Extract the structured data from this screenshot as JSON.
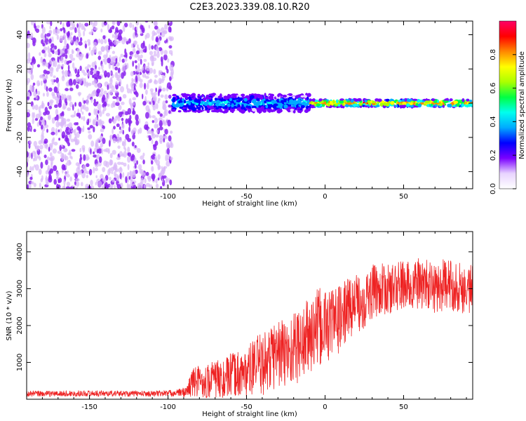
{
  "title": "C2E3.2023.339.08.10.R20",
  "colors": {
    "snr_line": "#ee2222",
    "scatter_noise": "#8a22ee",
    "scatter_light": "#d8b8f8"
  },
  "chart_data": [
    {
      "type": "heatmap",
      "name": "spectrogram",
      "xlabel": "Height of straight line (km)",
      "ylabel": "Frequency (Hz)",
      "xlim": [
        -190,
        94
      ],
      "ylim": [
        -50,
        48
      ],
      "xticks": [
        -150,
        -100,
        -50,
        0,
        50
      ],
      "xtick_labels": [
        "-150",
        "-100",
        "-50",
        "0",
        "50"
      ],
      "yticks": [
        -40,
        -20,
        0,
        20,
        40
      ],
      "ytick_labels": [
        "-40",
        "-20",
        "0",
        "20",
        "40"
      ],
      "colorbar": {
        "label": "Normalized spectral amplitude",
        "range": [
          0,
          1
        ],
        "ticks": [
          0.0,
          0.2,
          0.4,
          0.6,
          0.8
        ],
        "tick_labels": [
          "0.0",
          "0.2",
          "0.4",
          "0.6",
          "0.8"
        ],
        "colormap": [
          "#ffffff",
          "#e8d4ff",
          "#7a00ff",
          "#0000ff",
          "#00aaff",
          "#00ffee",
          "#00ff44",
          "#aaff00",
          "#ffff00",
          "#ff8800",
          "#ff0000",
          "#ff0066"
        ]
      },
      "regions": [
        {
          "description": "noise",
          "x_range": [
            -190,
            -97
          ],
          "freq_range": [
            -50,
            48
          ],
          "amplitude": 0.15
        },
        {
          "description": "signal band",
          "x_range": [
            -97,
            -10
          ],
          "freq_center": 0,
          "freq_halfwidth": 5,
          "amplitude": 0.4
        },
        {
          "description": "signal band",
          "x_range": [
            -10,
            94
          ],
          "freq_center": 0,
          "freq_halfwidth": 2,
          "amplitude": 0.85
        }
      ]
    },
    {
      "type": "line",
      "name": "snr",
      "xlabel": "Height of straight line (km)",
      "ylabel": "SNR (10 * v/v)",
      "xlim": [
        -190,
        94
      ],
      "ylim": [
        0,
        4550
      ],
      "xticks": [
        -150,
        -100,
        -50,
        0,
        50
      ],
      "xtick_labels": [
        "-150",
        "-100",
        "-50",
        "0",
        "50"
      ],
      "yticks": [
        1000,
        2000,
        3000,
        4000
      ],
      "ytick_labels": [
        "1000",
        "2000",
        "3000",
        "4000"
      ],
      "series": [
        {
          "name": "SNR",
          "x": [
            -190,
            -170,
            -150,
            -130,
            -110,
            -95,
            -88,
            -85,
            -80,
            -75,
            -70,
            -65,
            -60,
            -55,
            -50,
            -45,
            -40,
            -35,
            -30,
            -25,
            -20,
            -15,
            -10,
            -5,
            0,
            5,
            10,
            15,
            20,
            25,
            30,
            35,
            40,
            45,
            50,
            55,
            60,
            65,
            70,
            75,
            80,
            85,
            90,
            94
          ],
          "y": [
            150,
            150,
            160,
            155,
            150,
            170,
            200,
            450,
            500,
            450,
            550,
            500,
            650,
            700,
            700,
            900,
            950,
            1100,
            1300,
            1200,
            1400,
            1500,
            1700,
            1900,
            2000,
            2100,
            2200,
            2500,
            2600,
            2700,
            2900,
            3000,
            2950,
            3050,
            3100,
            3050,
            3150,
            3100,
            3000,
            3100,
            3100,
            3050,
            3000,
            3000
          ],
          "spread": [
            80,
            80,
            80,
            80,
            80,
            90,
            150,
            400,
            450,
            500,
            550,
            550,
            600,
            650,
            650,
            800,
            850,
            900,
            1000,
            1000,
            1000,
            1050,
            1100,
            1100,
            1050,
            1000,
            900,
            850,
            800,
            800,
            750,
            700,
            700,
            700,
            700,
            700,
            700,
            700,
            700,
            700,
            700,
            700,
            700,
            700
          ]
        }
      ]
    }
  ]
}
